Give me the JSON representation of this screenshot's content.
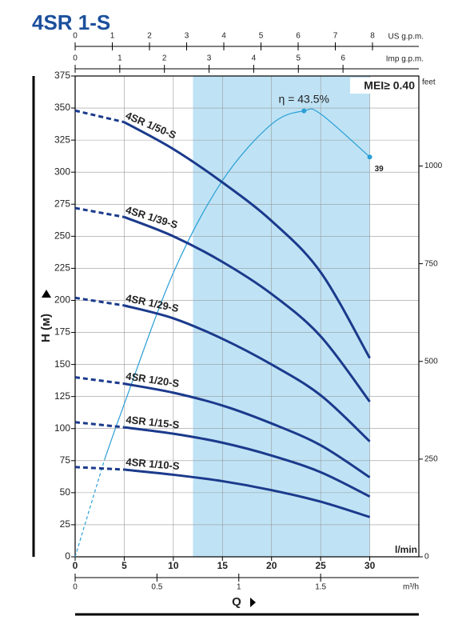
{
  "chart_data": {
    "type": "line",
    "title": "4SR 1-S",
    "xlabel": "Q",
    "ylabel": "H (м)",
    "xunit": "l/min",
    "x": [
      0,
      5,
      10,
      15,
      20,
      25,
      30
    ],
    "xlim": [
      0,
      35
    ],
    "xticks": [
      0,
      5,
      10,
      15,
      20,
      25,
      30
    ],
    "ylim": [
      0,
      375
    ],
    "yticks": [
      0,
      25,
      50,
      75,
      100,
      125,
      150,
      175,
      200,
      225,
      250,
      275,
      300,
      325,
      350,
      375
    ],
    "y2label": "feet",
    "y2lim": [
      0,
      1230.3
    ],
    "y2ticks": [
      0,
      250,
      500,
      750,
      1000
    ],
    "top_axes": [
      {
        "label": "US g.p.m.",
        "lim": [
          0,
          9.247
        ],
        "ticks": [
          0,
          1,
          2,
          3,
          4,
          5,
          6,
          7,
          8
        ]
      },
      {
        "label": "Imp g.p.m.",
        "lim": [
          0,
          7.699
        ],
        "ticks": [
          0,
          1,
          2,
          3,
          4,
          5,
          6
        ]
      }
    ],
    "bottom_axis2": {
      "label": "m³/h",
      "lim": [
        0,
        2.1
      ],
      "ticks": [
        0,
        0.5,
        1,
        1.5
      ]
    },
    "highlight_range": [
      12,
      30
    ],
    "highlight_color": "#bfe3f5",
    "annotation": "MEI≥ 0.40",
    "grid": true,
    "dashed_below_x": 5,
    "series": [
      {
        "name": "4SR 1/50-S",
        "color": "#1b3a8c",
        "values": [
          348,
          339,
          318,
          292,
          262,
          222,
          155
        ]
      },
      {
        "name": "4SR 1/39-S",
        "color": "#1b3a8c",
        "values": [
          272,
          265,
          250,
          230,
          205,
          172,
          121
        ]
      },
      {
        "name": "4SR 1/29-S",
        "color": "#1b3a8c",
        "values": [
          202,
          196,
          186,
          170,
          150,
          126,
          90
        ]
      },
      {
        "name": "4SR 1/20-S",
        "color": "#1b3a8c",
        "values": [
          140,
          135,
          128,
          118,
          104,
          87,
          62
        ]
      },
      {
        "name": "4SR 1/15-S",
        "color": "#1b3a8c",
        "values": [
          105,
          101,
          96,
          89,
          79,
          66,
          47
        ]
      },
      {
        "name": "4SR 1/10-S",
        "color": "#1b3a8c",
        "values": [
          70,
          68,
          64,
          59,
          52,
          43,
          31
        ]
      }
    ],
    "efficiency": {
      "color": "#2a9fd6",
      "lim": [
        0,
        46.9
      ],
      "dashed_below_x": 3,
      "x": [
        0,
        3,
        5,
        10,
        15,
        20,
        23.3,
        25,
        30
      ],
      "values": [
        0,
        9.5,
        14.9,
        27.7,
        36.7,
        42.2,
        43.5,
        43.2,
        39
      ],
      "value_labels": [
        null,
        null,
        null,
        null,
        null,
        null,
        "η = 43.5%",
        null,
        "39"
      ]
    }
  }
}
